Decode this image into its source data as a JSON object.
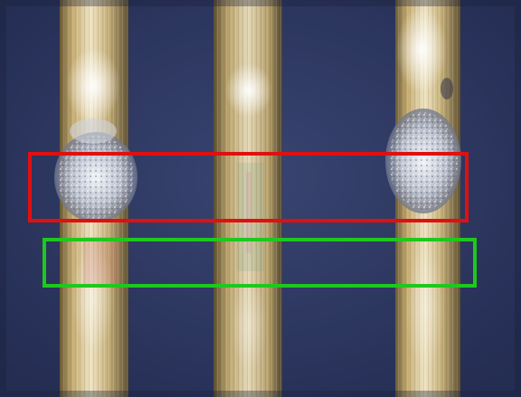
{
  "image": {
    "subject": "three-metal-pins",
    "colors": {
      "background": "#33406a",
      "pin_metal": "#c9b27a",
      "pin_highlight": "#f4eccf",
      "solder": "#d8dde6",
      "highlight_red": "#e01010",
      "highlight_green": "#1ec81e"
    }
  }
}
